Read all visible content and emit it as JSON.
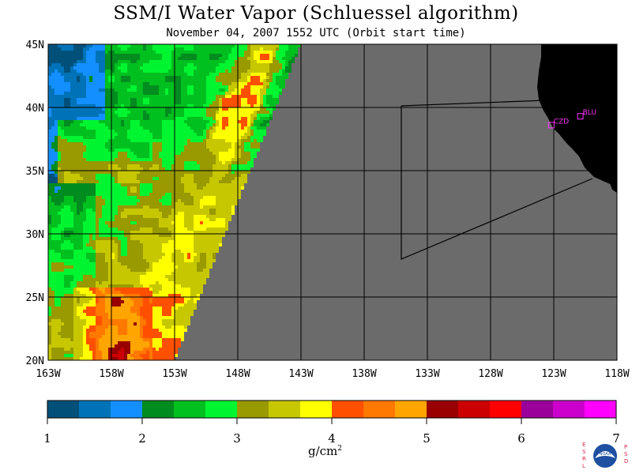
{
  "header": {
    "title": "SSM/I Water Vapor (Schluessel algorithm)",
    "subtitle": "November 04, 2007  1552 UTC  (Orbit start time)"
  },
  "map": {
    "lat_labels": [
      "45N",
      "40N",
      "35N",
      "30N",
      "25N",
      "20N"
    ],
    "lon_labels": [
      "163W",
      "158W",
      "153W",
      "148W",
      "143W",
      "138W",
      "133W",
      "128W",
      "123W",
      "118W"
    ],
    "lat_range": [
      20,
      45
    ],
    "lon_range": [
      -163,
      -118
    ],
    "colors": {
      "nodata": "#6b6b6b",
      "land": "#000000",
      "grid": "#000000",
      "station": "#ff33ff"
    },
    "stations": [
      {
        "id": "CZD",
        "lat": 38.6,
        "lon": -123.2
      },
      {
        "id": "BLU",
        "lat": 39.3,
        "lon": -120.9
      }
    ]
  },
  "colorbar": {
    "ticks": [
      "1",
      "2",
      "3",
      "4",
      "5",
      "6",
      "7"
    ],
    "colors": [
      "#00507a",
      "#0073b8",
      "#148fff",
      "#008c1e",
      "#00c01f",
      "#00f531",
      "#999900",
      "#c7c700",
      "#ffff00",
      "#ff5000",
      "#ff7800",
      "#ffa500",
      "#990000",
      "#cc0000",
      "#ff0000",
      "#9b009b",
      "#cc00cc",
      "#ff00ff"
    ],
    "unit": "g/cm",
    "unit_exp": "2"
  },
  "logo": {
    "letters_left": [
      "E",
      "S",
      "R",
      "L"
    ],
    "letters_right": [
      "P",
      "S",
      "D"
    ],
    "center": "NOAA"
  }
}
